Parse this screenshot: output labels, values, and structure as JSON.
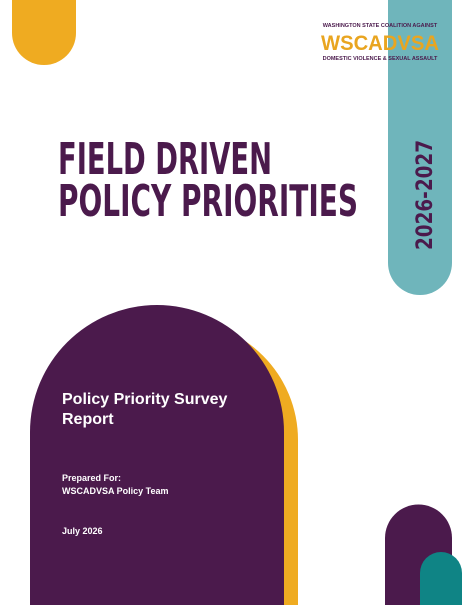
{
  "logo": {
    "top_line": "WASHINGTON STATE COALITION AGAINST",
    "name": "WSCADVSA",
    "bottom_line": "DOMESTIC VIOLENCE & SEXUAL ASSAULT"
  },
  "title": {
    "line1": "FIELD DRIVEN",
    "line2": "POLICY PRIORITIES"
  },
  "years": "2026-2027",
  "subtitle": {
    "line1": "Policy Priority Survey",
    "line2": "Report"
  },
  "prepared": {
    "label": "Prepared For:",
    "recipient": "WSCADVSA Policy Team"
  },
  "date": "July 2026"
}
